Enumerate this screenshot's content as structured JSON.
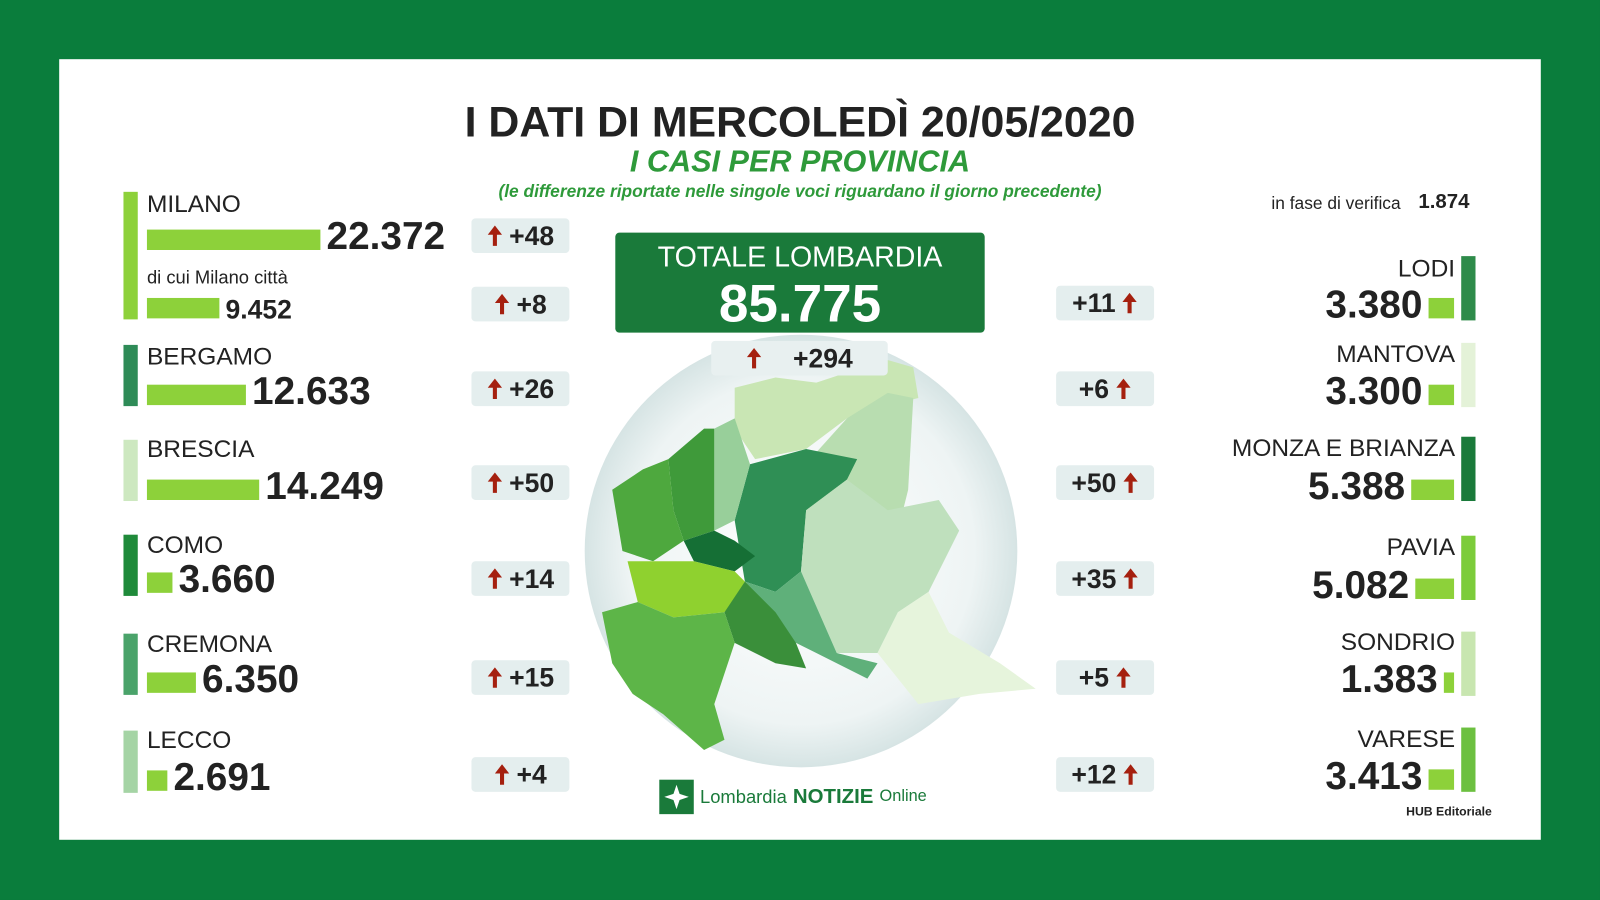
{
  "header": {
    "title": "I DATI DI MERCOLEDÌ 20/05/2020",
    "subtitle": "I CASI PER PROVINCIA",
    "note": "(le differenze riportate nelle singole voci riguardano il giorno precedente)"
  },
  "pending": {
    "label": "in fase di verifica",
    "value": "1.874"
  },
  "total": {
    "label": "TOTALE LOMBARDIA",
    "value": "85.775",
    "change": "+294"
  },
  "left": [
    {
      "name": "MILANO",
      "cases": "22.372",
      "change": "+48",
      "sub": {
        "label": "di cui Milano città",
        "cases": "9.452",
        "change": "+8"
      }
    },
    {
      "name": "BERGAMO",
      "cases": "12.633",
      "change": "+26"
    },
    {
      "name": "BRESCIA",
      "cases": "14.249",
      "change": "+50"
    },
    {
      "name": "COMO",
      "cases": "3.660",
      "change": "+14"
    },
    {
      "name": "CREMONA",
      "cases": "6.350",
      "change": "+15"
    },
    {
      "name": "LECCO",
      "cases": "2.691",
      "change": "+4"
    }
  ],
  "right": [
    {
      "name": "LODI",
      "cases": "3.380",
      "change": "+11"
    },
    {
      "name": "MANTOVA",
      "cases": "3.300",
      "change": "+6"
    },
    {
      "name": "MONZA E BRIANZA",
      "cases": "5.388",
      "change": "+50"
    },
    {
      "name": "PAVIA",
      "cases": "5.082",
      "change": "+35"
    },
    {
      "name": "SONDRIO",
      "cases": "1.383",
      "change": "+5"
    },
    {
      "name": "VARESE",
      "cases": "3.413",
      "change": "+12"
    }
  ],
  "footer": {
    "logo_a": "Lombardia",
    "logo_b": "NOTIZIE",
    "logo_c": "Online",
    "credit": "HUB Editoriale"
  }
}
